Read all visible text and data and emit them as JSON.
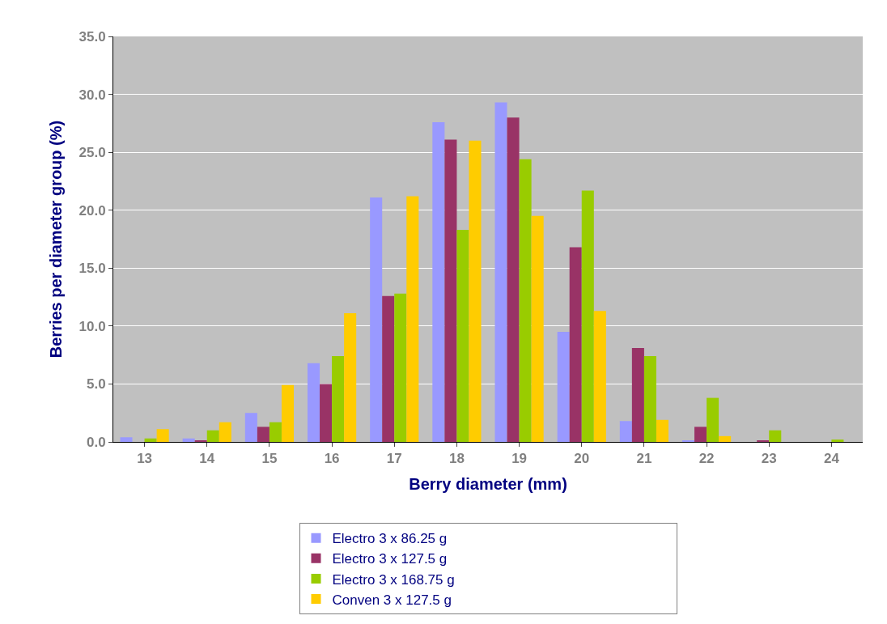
{
  "chart_data": {
    "type": "bar",
    "xlabel": "Berry diameter (mm)",
    "ylabel": "Berries per diameter group (%)",
    "categories": [
      "13",
      "14",
      "15",
      "16",
      "17",
      "18",
      "19",
      "20",
      "21",
      "22",
      "23",
      "24"
    ],
    "series": [
      {
        "name": "Electro 3 x 86.25 g",
        "color": "#9999ff",
        "values": [
          0.4,
          0.3,
          2.5,
          6.8,
          21.1,
          27.6,
          29.3,
          9.5,
          1.8,
          0.1,
          0,
          0
        ]
      },
      {
        "name": "Electro 3 x 127.5 g",
        "color": "#993366",
        "values": [
          0,
          0.1,
          1.3,
          5.0,
          12.6,
          26.1,
          28.0,
          16.8,
          8.1,
          1.3,
          0.1,
          0
        ]
      },
      {
        "name": "Electro 3 x 168.75 g",
        "color": "#99cc00",
        "values": [
          0.3,
          1.0,
          1.7,
          7.4,
          12.8,
          18.3,
          24.4,
          21.7,
          7.4,
          3.8,
          1.0,
          0.2
        ]
      },
      {
        "name": "Conven 3 x 127.5 g",
        "color": "#ffcc00",
        "values": [
          1.1,
          1.7,
          4.9,
          11.1,
          21.2,
          26.0,
          19.5,
          11.3,
          1.9,
          0.5,
          0,
          0
        ]
      }
    ],
    "ylim": [
      0,
      35
    ],
    "yticks": [
      {
        "value": 0,
        "label": "0.0"
      },
      {
        "value": 5,
        "label": "5.0"
      },
      {
        "value": 10,
        "label": "10.0"
      },
      {
        "value": 15,
        "label": "15.0"
      },
      {
        "value": 20,
        "label": "20.0"
      },
      {
        "value": 25,
        "label": "25.0"
      },
      {
        "value": 30,
        "label": "30.0"
      },
      {
        "value": 35,
        "label": "35.0"
      }
    ],
    "grid": "y",
    "legend": "bottom"
  }
}
